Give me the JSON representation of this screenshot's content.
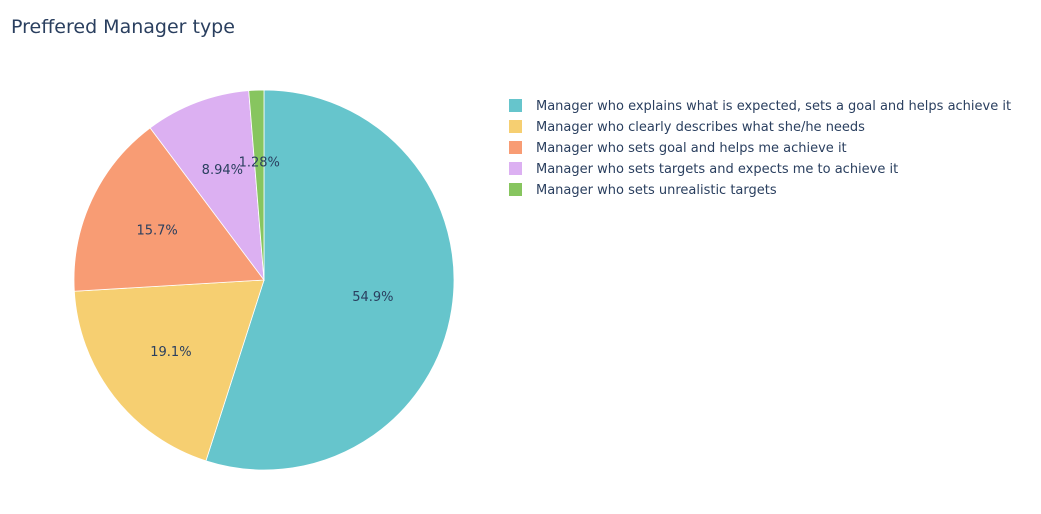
{
  "chart_data": {
    "type": "pie",
    "title": "Preffered Manager type",
    "legend_position": "top-right",
    "slices": [
      {
        "label": "Manager who explains what is expected, sets a goal and helps achieve it",
        "value": 54.9,
        "display": "54.9%",
        "color": "#66c5cc"
      },
      {
        "label": "Manager who clearly describes what she/he needs",
        "value": 19.1,
        "display": "19.1%",
        "color": "#f6cf71"
      },
      {
        "label": "Manager who sets goal and helps me achieve it",
        "value": 15.7,
        "display": "15.7%",
        "color": "#f89c74"
      },
      {
        "label": "Manager who sets targets and expects me to achieve it",
        "value": 8.94,
        "display": "8.94%",
        "color": "#dcb0f2"
      },
      {
        "label": "Manager who sets unrealistic targets",
        "value": 1.28,
        "display": "1.28%",
        "color": "#87c55f"
      }
    ]
  }
}
